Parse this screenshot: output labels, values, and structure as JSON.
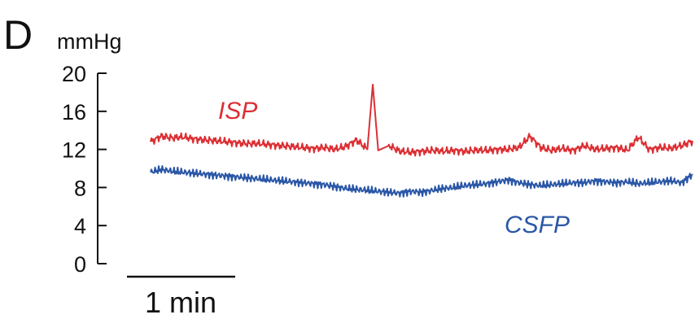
{
  "chart_data": {
    "type": "line",
    "panel_label": "D",
    "ylabel": "mmHg",
    "ylim": [
      0,
      20
    ],
    "yticks": [
      {
        "value": 0,
        "label": "0"
      },
      {
        "value": 4,
        "label": "4"
      },
      {
        "value": 8,
        "label": "8"
      },
      {
        "value": 12,
        "label": "12"
      },
      {
        "value": 16,
        "label": "16"
      },
      {
        "value": 20,
        "label": "20"
      }
    ],
    "x_unit": "min",
    "xlim": [
      0,
      5.0
    ],
    "scale_bar": {
      "value": 1,
      "label": "1 min"
    },
    "grid": false,
    "series": [
      {
        "name": "ISP",
        "color": "#dc2f34",
        "x": [
          0.0,
          0.1,
          0.2,
          0.3,
          0.4,
          0.5,
          0.6,
          0.7,
          0.8,
          0.9,
          1.0,
          1.1,
          1.2,
          1.3,
          1.4,
          1.5,
          1.6,
          1.7,
          1.8,
          1.9,
          2.0,
          2.05,
          2.1,
          2.2,
          2.3,
          2.4,
          2.5,
          2.6,
          2.7,
          2.8,
          2.9,
          3.0,
          3.1,
          3.2,
          3.3,
          3.4,
          3.5,
          3.6,
          3.7,
          3.8,
          3.9,
          4.0,
          4.1,
          4.2,
          4.3,
          4.4,
          4.5,
          4.6,
          4.7,
          4.8,
          4.9,
          5.0
        ],
        "values": [
          12.8,
          13.4,
          13.2,
          13.3,
          13.1,
          13.0,
          12.9,
          12.8,
          12.7,
          12.6,
          12.6,
          12.5,
          12.4,
          12.3,
          12.2,
          12.1,
          12.2,
          12.0,
          12.3,
          13.0,
          12.0,
          18.8,
          11.9,
          12.4,
          11.8,
          11.7,
          11.8,
          11.9,
          11.8,
          11.9,
          11.8,
          11.9,
          11.9,
          12.0,
          12.0,
          12.2,
          13.4,
          12.2,
          11.9,
          12.1,
          11.9,
          12.4,
          12.0,
          12.1,
          12.2,
          11.9,
          13.3,
          12.0,
          12.2,
          12.1,
          12.4,
          12.9
        ]
      },
      {
        "name": "CSFP",
        "color": "#2b57a7",
        "x": [
          0.0,
          0.1,
          0.2,
          0.3,
          0.4,
          0.5,
          0.6,
          0.7,
          0.8,
          0.9,
          1.0,
          1.1,
          1.2,
          1.3,
          1.4,
          1.5,
          1.6,
          1.7,
          1.8,
          1.9,
          2.0,
          2.1,
          2.2,
          2.3,
          2.4,
          2.5,
          2.6,
          2.7,
          2.8,
          2.9,
          3.0,
          3.1,
          3.2,
          3.3,
          3.4,
          3.5,
          3.6,
          3.7,
          3.8,
          3.9,
          4.0,
          4.1,
          4.2,
          4.3,
          4.4,
          4.5,
          4.6,
          4.7,
          4.8,
          4.9,
          5.0
        ],
        "values": [
          9.6,
          9.9,
          9.7,
          9.6,
          9.5,
          9.4,
          9.3,
          9.2,
          9.1,
          9.0,
          8.9,
          8.8,
          8.7,
          8.6,
          8.5,
          8.4,
          8.3,
          8.1,
          7.9,
          7.8,
          7.7,
          7.6,
          7.5,
          7.4,
          7.6,
          7.5,
          7.7,
          7.9,
          8.0,
          8.2,
          8.3,
          8.4,
          8.6,
          8.8,
          8.5,
          8.3,
          8.2,
          8.3,
          8.4,
          8.5,
          8.5,
          8.7,
          8.6,
          8.5,
          8.6,
          8.4,
          8.5,
          8.6,
          8.7,
          8.5,
          9.4
        ]
      }
    ]
  }
}
